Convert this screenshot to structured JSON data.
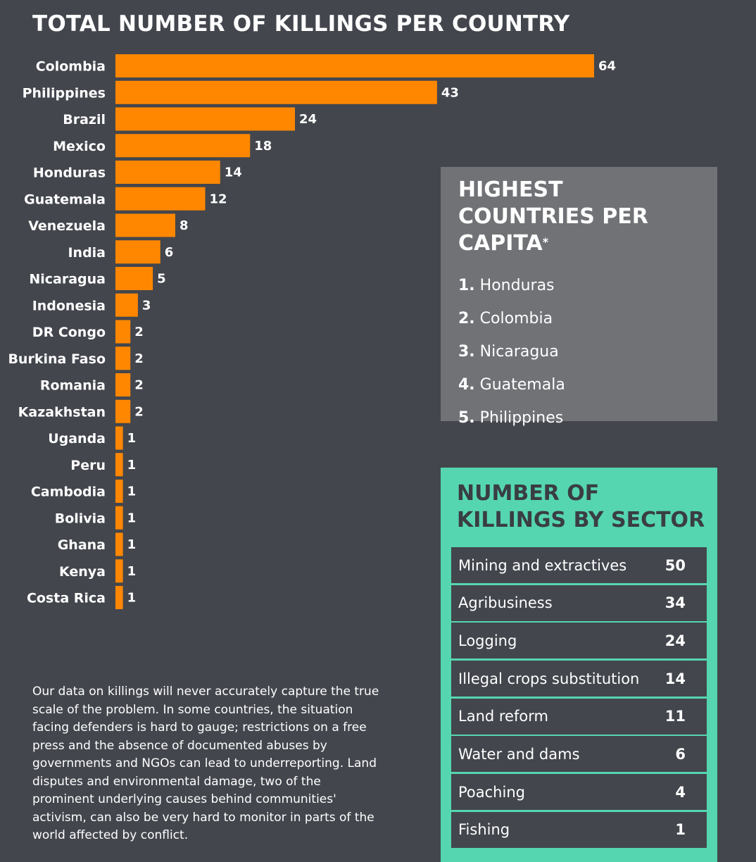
{
  "chart_data": {
    "type": "bar",
    "orientation": "horizontal",
    "title": "TOTAL NUMBER OF KILLINGS PER COUNTRY",
    "categories": [
      "Colombia",
      "Philippines",
      "Brazil",
      "Mexico",
      "Honduras",
      "Guatemala",
      "Venezuela",
      "India",
      "Nicaragua",
      "Indonesia",
      "DR Congo",
      "Burkina Faso",
      "Romania",
      "Kazakhstan",
      "Uganda",
      "Peru",
      "Cambodia",
      "Bolivia",
      "Ghana",
      "Kenya",
      "Costa Rica"
    ],
    "values": [
      64,
      43,
      24,
      18,
      14,
      12,
      8,
      6,
      5,
      3,
      2,
      2,
      2,
      2,
      1,
      1,
      1,
      1,
      1,
      1,
      1
    ],
    "colors": {
      "bar": "#ff8700",
      "background": "#43464d"
    },
    "grid": false
  },
  "capita": {
    "title": "HIGHEST COUNTRIES PER CAPITA",
    "marker": "*",
    "items": [
      {
        "num": "1.",
        "name": "Honduras"
      },
      {
        "num": "2.",
        "name": "Colombia"
      },
      {
        "num": "3.",
        "name": "Nicaragua"
      },
      {
        "num": "4.",
        "name": "Guatemala"
      },
      {
        "num": "5.",
        "name": "Philippines"
      }
    ]
  },
  "sector": {
    "title": "NUMBER OF KILLINGS BY SECTOR",
    "rows": [
      {
        "label": "Mining and extractives",
        "value": "50"
      },
      {
        "label": "Agribusiness",
        "value": "34"
      },
      {
        "label": "Logging",
        "value": "24"
      },
      {
        "label": "Illegal crops substitution",
        "value": "14"
      },
      {
        "label": "Land reform",
        "value": "11"
      },
      {
        "label": "Water and dams",
        "value": "6"
      },
      {
        "label": "Poaching",
        "value": "4"
      },
      {
        "label": "Fishing",
        "value": "1"
      }
    ]
  },
  "note": "Our data on killings will never accurately capture the true scale of the problem. In some countries, the situation facing defenders is hard to gauge; restrictions on a free press and the absence of documented abuses by governments and NGOs can lead to underreporting. Land disputes and environmental damage, two of the prominent underlying causes behind communities' activism, can also be very hard to monitor in parts of the world affected by conflict."
}
